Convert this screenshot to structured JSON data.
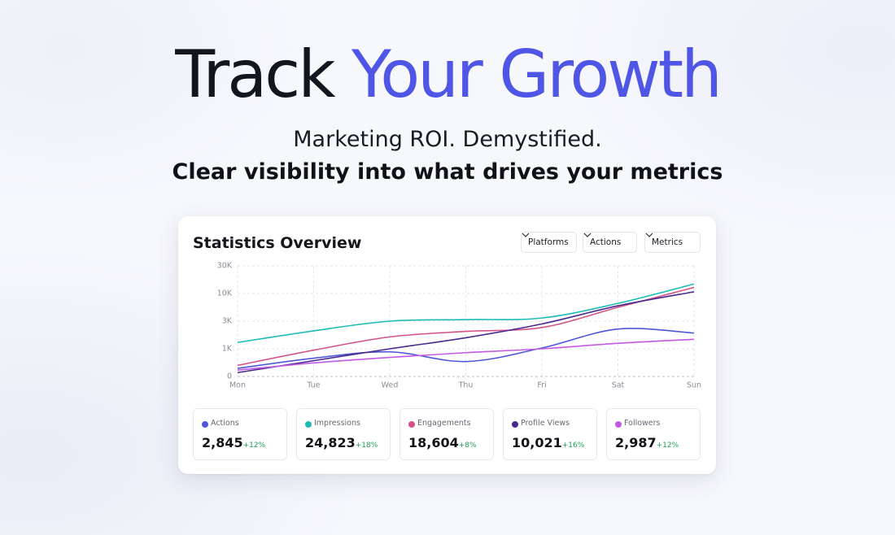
{
  "hero": {
    "title_dark": "Track",
    "title_accent": "Your Growth",
    "tagline": "Marketing ROI. Demystified.",
    "subtitle": "Clear visibility into what drives your metrics"
  },
  "filters": [
    "Platforms",
    "Actions",
    "Metrics"
  ],
  "chart_data": {
    "type": "line",
    "title": "Statistics Overview",
    "categories": [
      "Mon",
      "Tue",
      "Wed",
      "Thu",
      "Fri",
      "Sat",
      "Sun"
    ],
    "ylim": [
      0,
      30000
    ],
    "yticks": [
      0,
      {
        "value": 1000,
        "label": "1K"
      },
      {
        "value": 3000,
        "label": "3K"
      },
      {
        "value": 10000,
        "label": "10K"
      },
      {
        "value": 30000,
        "label": "30K"
      }
    ],
    "grid": true,
    "series": [
      {
        "name": "Actions",
        "color": "#4e57d8",
        "values": [
          290,
          660,
          890,
          540,
          1060,
          2430,
          2140
        ]
      },
      {
        "name": "Impressions",
        "color": "#1cbcb4",
        "values": [
          1460,
          2300,
          3000,
          3400,
          3800,
          7500,
          16900
        ]
      },
      {
        "name": "Engagements",
        "color": "#d4528a",
        "values": [
          400,
          950,
          1860,
          2260,
          2540,
          6500,
          14400
        ]
      },
      {
        "name": "Profile Views",
        "color": "#4b2a8f",
        "values": [
          140,
          570,
          1000,
          1800,
          2800,
          6900,
          11250
        ]
      },
      {
        "name": "Followers",
        "color": "#c15ce2",
        "values": [
          230,
          490,
          690,
          860,
          1000,
          1400,
          1690
        ]
      }
    ]
  },
  "stats": [
    {
      "value": "2,845",
      "change": "+12%"
    },
    {
      "value": "24,823",
      "change": "+18%"
    },
    {
      "value": "18,604",
      "change": "+8%"
    },
    {
      "value": "10,021",
      "change": "+16%"
    },
    {
      "value": "2,987",
      "change": "+12%"
    }
  ]
}
